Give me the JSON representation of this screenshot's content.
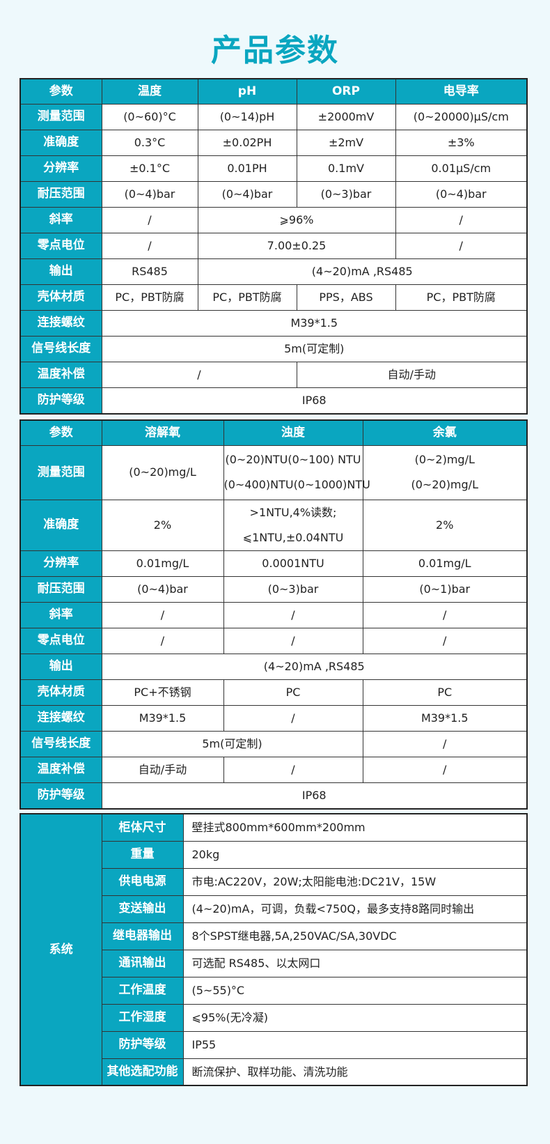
{
  "title": "产品参数",
  "table1": {
    "header": [
      "参数",
      "温度",
      "pH",
      "ORP",
      "电导率"
    ],
    "rows": [
      {
        "label": "测量范围",
        "cells": [
          {
            "t": [
              "(0~60)°C"
            ]
          },
          {
            "t": [
              "(0~14)pH"
            ]
          },
          {
            "t": [
              "±2000mV"
            ]
          },
          {
            "t": [
              "(0~20000)μS/cm"
            ]
          }
        ]
      },
      {
        "label": "准确度",
        "cells": [
          {
            "t": [
              "0.3°C"
            ]
          },
          {
            "t": [
              "±0.02PH"
            ]
          },
          {
            "t": [
              "±2mV"
            ]
          },
          {
            "t": [
              "±3%"
            ]
          }
        ]
      },
      {
        "label": "分辨率",
        "cells": [
          {
            "t": [
              "±0.1°C"
            ]
          },
          {
            "t": [
              "0.01PH"
            ]
          },
          {
            "t": [
              "0.1mV"
            ]
          },
          {
            "t": [
              "0.01μS/cm"
            ]
          }
        ]
      },
      {
        "label": "耐压范围",
        "cells": [
          {
            "t": [
              "(0~4)bar"
            ]
          },
          {
            "t": [
              "(0~4)bar"
            ]
          },
          {
            "t": [
              "(0~3)bar"
            ]
          },
          {
            "t": [
              "(0~4)bar"
            ]
          }
        ]
      },
      {
        "label": "斜率",
        "cells": [
          {
            "t": [
              "/"
            ]
          },
          {
            "t": [
              "⩾96%"
            ],
            "span": 2
          },
          {
            "t": [
              "/"
            ]
          }
        ]
      },
      {
        "label": "零点电位",
        "cells": [
          {
            "t": [
              "/"
            ]
          },
          {
            "t": [
              "7.00±0.25"
            ],
            "span": 2
          },
          {
            "t": [
              "/"
            ]
          }
        ]
      },
      {
        "label": "输出",
        "cells": [
          {
            "t": [
              "RS485"
            ]
          },
          {
            "t": [
              "(4~20)mA ,RS485"
            ],
            "span": 3
          }
        ]
      },
      {
        "label": "壳体材质",
        "cells": [
          {
            "t": [
              "PC，PBT防腐"
            ]
          },
          {
            "t": [
              "PC，PBT防腐"
            ]
          },
          {
            "t": [
              "PPS，ABS"
            ]
          },
          {
            "t": [
              "PC，PBT防腐"
            ]
          }
        ]
      },
      {
        "label": "连接螺纹",
        "cells": [
          {
            "t": [
              "M39*1.5"
            ],
            "span": 4
          }
        ]
      },
      {
        "label": "信号线长度",
        "cells": [
          {
            "t": [
              "5m(可定制)"
            ],
            "span": 4
          }
        ]
      },
      {
        "label": "温度补偿",
        "cells": [
          {
            "t": [
              "/"
            ],
            "span": 2
          },
          {
            "t": [
              "自动/手动"
            ],
            "span": 2
          }
        ]
      },
      {
        "label": "防护等级",
        "cells": [
          {
            "t": [
              "IP68"
            ],
            "span": 4
          }
        ]
      }
    ]
  },
  "table2": {
    "header": [
      "参数",
      "溶解氧",
      "浊度",
      "余氯"
    ],
    "rows": [
      {
        "label": "测量范围",
        "cells": [
          {
            "t": [
              "(0~20)mg/L"
            ]
          },
          {
            "t": [
              "(0~20)NTU(0~100) NTU",
              "(0~400)NTU(0~1000)NTU"
            ]
          },
          {
            "t": [
              "(0~2)mg/L",
              "(0~20)mg/L"
            ]
          }
        ]
      },
      {
        "label": "准确度",
        "cells": [
          {
            "t": [
              "2%"
            ]
          },
          {
            "t": [
              ">1NTU,4%读数;",
              "⩽1NTU,±0.04NTU"
            ]
          },
          {
            "t": [
              "2%"
            ]
          }
        ]
      },
      {
        "label": "分辨率",
        "cells": [
          {
            "t": [
              "0.01mg/L"
            ]
          },
          {
            "t": [
              "0.0001NTU"
            ]
          },
          {
            "t": [
              "0.01mg/L"
            ]
          }
        ]
      },
      {
        "label": "耐压范围",
        "cells": [
          {
            "t": [
              "(0~4)bar"
            ]
          },
          {
            "t": [
              "(0~3)bar"
            ]
          },
          {
            "t": [
              "(0~1)bar"
            ]
          }
        ]
      },
      {
        "label": "斜率",
        "cells": [
          {
            "t": [
              "/"
            ]
          },
          {
            "t": [
              "/"
            ]
          },
          {
            "t": [
              "/"
            ]
          }
        ]
      },
      {
        "label": "零点电位",
        "cells": [
          {
            "t": [
              "/"
            ]
          },
          {
            "t": [
              "/"
            ]
          },
          {
            "t": [
              "/"
            ]
          }
        ]
      },
      {
        "label": "输出",
        "cells": [
          {
            "t": [
              "(4~20)mA ,RS485"
            ],
            "span": 3
          }
        ]
      },
      {
        "label": "壳体材质",
        "cells": [
          {
            "t": [
              "PC+不锈钢"
            ]
          },
          {
            "t": [
              "PC"
            ]
          },
          {
            "t": [
              "PC"
            ]
          }
        ]
      },
      {
        "label": "连接螺纹",
        "cells": [
          {
            "t": [
              "M39*1.5"
            ]
          },
          {
            "t": [
              "/"
            ]
          },
          {
            "t": [
              "M39*1.5"
            ]
          }
        ]
      },
      {
        "label": "信号线长度",
        "cells": [
          {
            "t": [
              "5m(可定制)"
            ],
            "span": 2
          },
          {
            "t": [
              "/"
            ]
          }
        ]
      },
      {
        "label": "温度补偿",
        "cells": [
          {
            "t": [
              "自动/手动"
            ]
          },
          {
            "t": [
              "/"
            ]
          },
          {
            "t": [
              "/"
            ]
          }
        ]
      },
      {
        "label": "防护等级",
        "cells": [
          {
            "t": [
              "IP68"
            ],
            "span": 3
          }
        ]
      }
    ]
  },
  "table3": {
    "group": "系统",
    "rows": [
      {
        "label": "柜体尺寸",
        "value": "壁挂式800mm*600mm*200mm"
      },
      {
        "label": "重量",
        "value": "20kg"
      },
      {
        "label": "供电电源",
        "value": "市电:AC220V，20W;太阳能电池:DC21V，15W"
      },
      {
        "label": "变送输出",
        "value": "(4~20)mA，可调，负载<750Q，最多支持8路同时输出"
      },
      {
        "label": "继电器输出",
        "value": "8个SPST继电器,5A,250VAC/SA,30VDC"
      },
      {
        "label": "通讯输出",
        "value": "可选配 RS485、以太网口"
      },
      {
        "label": "工作温度",
        "value": "(5~55)°C"
      },
      {
        "label": "工作湿度",
        "value": "⩽95%(无冷凝)"
      },
      {
        "label": "防护等级",
        "value": "IP55"
      },
      {
        "label": "其他选配功能",
        "value": "断流保护、取样功能、清洗功能"
      }
    ]
  },
  "colors": {
    "accent": "#0aa6c0",
    "background": "#eef9fc"
  }
}
